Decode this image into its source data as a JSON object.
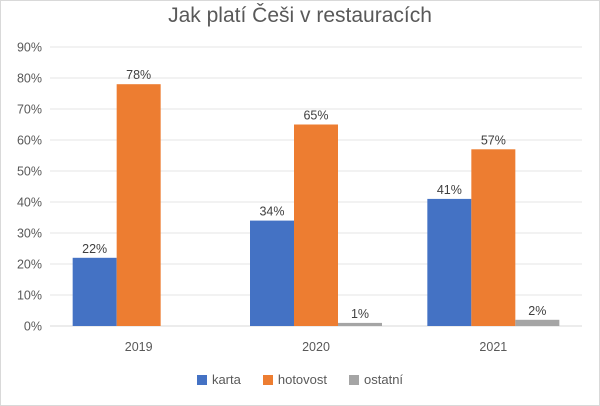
{
  "chart_data": {
    "type": "bar",
    "title": "Jak platí Češi v restauracích",
    "categories": [
      "2019",
      "2020",
      "2021"
    ],
    "series": [
      {
        "name": "karta",
        "values": [
          22,
          34,
          41
        ],
        "labels": [
          "22%",
          "34%",
          "41%"
        ],
        "color": "#4472C4"
      },
      {
        "name": "hotovost",
        "values": [
          78,
          65,
          57
        ],
        "labels": [
          "78%",
          "65%",
          "57%"
        ],
        "color": "#ED7D31"
      },
      {
        "name": "ostatní",
        "values": [
          null,
          1,
          2
        ],
        "labels": [
          "",
          "1%",
          "2%"
        ],
        "color": "#A5A5A5"
      }
    ],
    "ylim": [
      0,
      90
    ],
    "yticks": [
      "0%",
      "10%",
      "20%",
      "30%",
      "40%",
      "50%",
      "60%",
      "70%",
      "80%",
      "90%"
    ],
    "grid": true,
    "legend_position": "bottom"
  }
}
